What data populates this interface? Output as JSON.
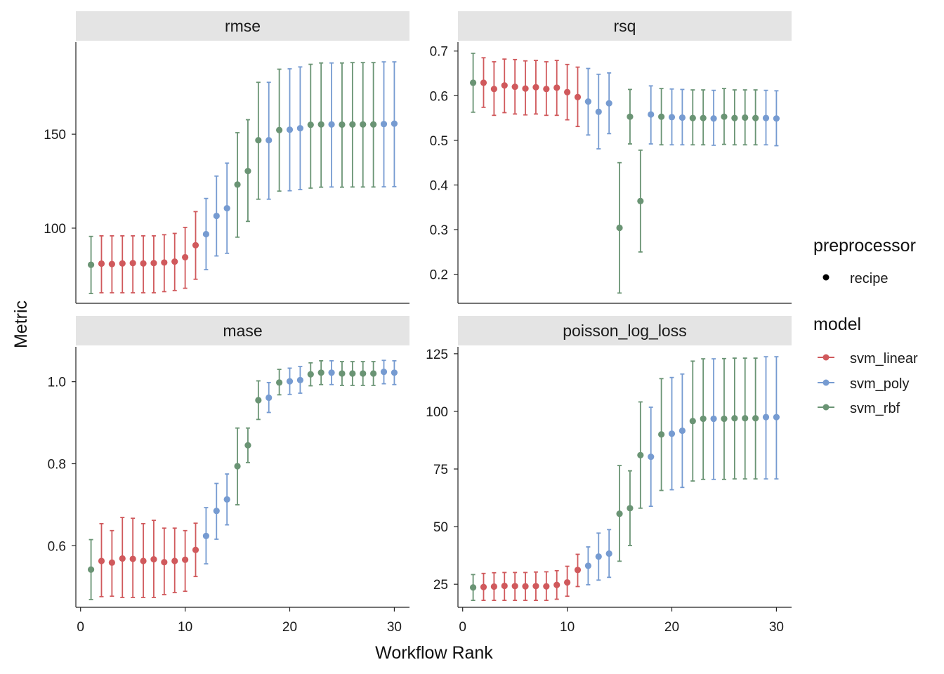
{
  "chart_data": {
    "type": "scatter",
    "subtype": "faceted point-range",
    "xlabel": "Workflow Rank",
    "ylabel": "Metric",
    "x_ticks": [
      0,
      10,
      20,
      30
    ],
    "legend": {
      "position": "right",
      "preprocessor_title": "preprocessor",
      "preprocessor_items": [
        {
          "label": "recipe",
          "color": "#000000"
        }
      ],
      "model_title": "model",
      "model_items": [
        {
          "label": "svm_linear",
          "color": "#d0595c"
        },
        {
          "label": "svm_poly",
          "color": "#769bd1"
        },
        {
          "label": "svm_rbf",
          "color": "#6a9474"
        }
      ]
    },
    "colors": {
      "svm_linear": "#d0595c",
      "svm_poly": "#769bd1",
      "svm_rbf": "#6a9474"
    },
    "models": [
      "svm_rbf",
      "svm_linear",
      "svm_linear",
      "svm_linear",
      "svm_linear",
      "svm_linear",
      "svm_linear",
      "svm_linear",
      "svm_linear",
      "svm_linear",
      "svm_linear",
      "svm_poly",
      "svm_poly",
      "svm_poly",
      "svm_rbf",
      "svm_rbf",
      "svm_rbf",
      "svm_poly",
      "svm_rbf",
      "svm_poly",
      "svm_poly",
      "svm_rbf",
      "svm_rbf",
      "svm_poly",
      "svm_rbf",
      "svm_rbf",
      "svm_rbf",
      "svm_rbf",
      "svm_poly",
      "svm_poly"
    ],
    "panels": [
      {
        "title": "rmse",
        "y_ticks": [
          100,
          150
        ],
        "y_tick_labels": [
          "100",
          "150"
        ],
        "ylim": [
          60,
          199
        ],
        "x": [
          1,
          2,
          3,
          4,
          5,
          6,
          7,
          8,
          9,
          10,
          11,
          12,
          13,
          14,
          15,
          16,
          17,
          18,
          19,
          20,
          21,
          22,
          23,
          24,
          25,
          26,
          27,
          28,
          29,
          30
        ],
        "y": [
          80.5,
          81.1,
          80.9,
          81.2,
          81.4,
          81.2,
          81.4,
          81.7,
          82.2,
          84.5,
          90.9,
          96.8,
          106.5,
          110.6,
          123.2,
          130.4,
          146.8,
          146.8,
          152.2,
          152.4,
          153.2,
          155,
          155.2,
          155.2,
          155.1,
          155.2,
          155.2,
          155.2,
          155.4,
          155.6
        ],
        "lower": [
          65.2,
          65.6,
          65.6,
          65.6,
          65.6,
          65.6,
          65.6,
          66.2,
          66.8,
          68,
          72.8,
          77.9,
          85.2,
          86.6,
          95.2,
          103.6,
          115.4,
          115.4,
          119.7,
          119.9,
          120.5,
          121.3,
          121.8,
          121.9,
          121.8,
          121.9,
          121.9,
          121.9,
          122,
          122.1
        ],
        "upper": [
          95.6,
          95.9,
          95.9,
          95.9,
          95.9,
          95.9,
          95.9,
          96.5,
          97.2,
          100.4,
          108.8,
          115.8,
          127.7,
          134.6,
          150.8,
          157.7,
          177.6,
          177.6,
          184.6,
          184.8,
          185.8,
          187.2,
          187.9,
          187.9,
          187.9,
          188.1,
          188.1,
          188.1,
          188.5,
          188.5
        ]
      },
      {
        "title": "rsq",
        "y_ticks": [
          0.2,
          0.3,
          0.4,
          0.5,
          0.6,
          0.7
        ],
        "y_tick_labels": [
          "0.2",
          "0.3",
          "0.4",
          "0.5",
          "0.6",
          "0.7"
        ],
        "ylim": [
          0.135,
          0.72
        ],
        "x": [
          1,
          2,
          3,
          4,
          5,
          6,
          7,
          8,
          9,
          10,
          11,
          12,
          13,
          14,
          15,
          16,
          17,
          18,
          19,
          20,
          21,
          22,
          23,
          24,
          25,
          26,
          27,
          28,
          29,
          30
        ],
        "y": [
          0.629,
          0.629,
          0.615,
          0.623,
          0.62,
          0.616,
          0.619,
          0.615,
          0.618,
          0.608,
          0.597,
          0.587,
          0.564,
          0.583,
          0.304,
          0.553,
          0.364,
          0.558,
          0.553,
          0.552,
          0.551,
          0.55,
          0.55,
          0.549,
          0.553,
          0.55,
          0.551,
          0.55,
          0.55,
          0.549
        ],
        "lower": [
          0.563,
          0.574,
          0.556,
          0.562,
          0.559,
          0.557,
          0.559,
          0.556,
          0.556,
          0.546,
          0.531,
          0.512,
          0.481,
          0.515,
          0.158,
          0.492,
          0.25,
          0.492,
          0.49,
          0.49,
          0.49,
          0.49,
          0.49,
          0.489,
          0.491,
          0.49,
          0.49,
          0.49,
          0.49,
          0.488
        ],
        "upper": [
          0.695,
          0.685,
          0.676,
          0.682,
          0.681,
          0.678,
          0.679,
          0.676,
          0.679,
          0.67,
          0.664,
          0.661,
          0.648,
          0.651,
          0.45,
          0.614,
          0.478,
          0.622,
          0.616,
          0.615,
          0.614,
          0.613,
          0.613,
          0.612,
          0.616,
          0.613,
          0.613,
          0.613,
          0.612,
          0.611
        ]
      },
      {
        "title": "mase",
        "y_ticks": [
          0.6,
          0.8,
          1.0
        ],
        "y_tick_labels": [
          "0.6",
          "0.8",
          "1.0"
        ],
        "ylim": [
          0.45,
          1.085
        ],
        "x": [
          1,
          2,
          3,
          4,
          5,
          6,
          7,
          8,
          9,
          10,
          11,
          12,
          13,
          14,
          15,
          16,
          17,
          18,
          19,
          20,
          21,
          22,
          23,
          24,
          25,
          26,
          27,
          28,
          29,
          30
        ],
        "y": [
          0.542,
          0.563,
          0.559,
          0.569,
          0.568,
          0.563,
          0.567,
          0.56,
          0.563,
          0.566,
          0.59,
          0.624,
          0.685,
          0.713,
          0.794,
          0.845,
          0.955,
          0.961,
          0.998,
          1.001,
          1.004,
          1.018,
          1.022,
          1.022,
          1.02,
          1.02,
          1.02,
          1.02,
          1.024,
          1.022
        ],
        "lower": [
          0.469,
          0.476,
          0.477,
          0.474,
          0.474,
          0.474,
          0.474,
          0.481,
          0.486,
          0.489,
          0.525,
          0.556,
          0.616,
          0.651,
          0.7,
          0.803,
          0.908,
          0.925,
          0.968,
          0.969,
          0.972,
          0.99,
          0.993,
          0.993,
          0.991,
          0.991,
          0.991,
          0.991,
          0.995,
          0.993
        ],
        "upper": [
          0.615,
          0.654,
          0.637,
          0.669,
          0.667,
          0.654,
          0.662,
          0.643,
          0.643,
          0.637,
          0.655,
          0.693,
          0.752,
          0.775,
          0.887,
          0.887,
          1.002,
          0.998,
          1.03,
          1.033,
          1.037,
          1.046,
          1.051,
          1.051,
          1.049,
          1.049,
          1.049,
          1.049,
          1.052,
          1.051
        ]
      },
      {
        "title": "poisson_log_loss",
        "y_ticks": [
          25,
          50,
          75,
          100,
          125
        ],
        "y_tick_labels": [
          "25",
          "50",
          "75",
          "100",
          "125"
        ],
        "ylim": [
          15,
          128
        ],
        "x": [
          1,
          2,
          3,
          4,
          5,
          6,
          7,
          8,
          9,
          10,
          11,
          12,
          13,
          14,
          15,
          16,
          17,
          18,
          19,
          20,
          21,
          22,
          23,
          24,
          25,
          26,
          27,
          28,
          29,
          30
        ],
        "y": [
          23.6,
          23.8,
          24,
          24.3,
          24.2,
          24.1,
          24.2,
          24.1,
          24.7,
          25.8,
          31.2,
          33,
          37,
          38.3,
          55.6,
          58,
          81,
          80.3,
          90,
          90.3,
          91.6,
          95.8,
          96.8,
          96.8,
          96.8,
          97,
          97,
          97,
          97.5,
          97.5
        ],
        "lower": [
          18,
          18,
          18,
          18,
          18,
          18,
          18,
          18,
          18.5,
          19.8,
          24,
          24.8,
          26.8,
          28,
          35,
          41.8,
          58,
          58.8,
          65.7,
          66,
          67,
          69.8,
          70.5,
          70.5,
          70.5,
          70.7,
          70.7,
          70.7,
          70.7,
          70.7
        ],
        "upper": [
          29.2,
          29.7,
          30,
          30.1,
          30.1,
          30.1,
          30.3,
          30.4,
          30.9,
          32.8,
          38,
          41.2,
          47.2,
          48.7,
          76.5,
          74.2,
          104.1,
          101.8,
          114.2,
          114.7,
          116.2,
          121.8,
          122.8,
          122.8,
          122.9,
          123.1,
          123.1,
          123.1,
          123.7,
          123.7
        ]
      }
    ]
  }
}
